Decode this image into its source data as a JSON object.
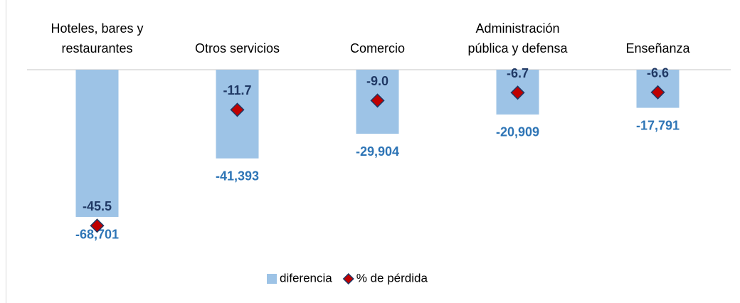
{
  "chart_data": {
    "type": "bar",
    "categories": [
      "Hoteles, bares y restaurantes",
      "Otros servicios",
      "Comercio",
      "Administración pública y defensa",
      "Enseñanza"
    ],
    "series": [
      {
        "name": "diferencia",
        "color": "#9dc3e6",
        "values": [
          -68701,
          -41393,
          -29904,
          -20909,
          -17791
        ],
        "value_labels": [
          "-68,701",
          "-41,393",
          "-29,904",
          "-20,909",
          "-17,791"
        ]
      },
      {
        "name": "% de pérdida",
        "type": "scatter",
        "axis": "y2",
        "color": "#c00000",
        "values": [
          -45.5,
          -11.7,
          -9.0,
          -6.7,
          -6.6
        ],
        "value_labels": [
          "-45.5",
          "-11.7",
          "-9.0",
          "-6.7",
          "-6.6"
        ]
      }
    ],
    "ylim": [
      -80000,
      0
    ],
    "y2lim": [
      -50,
      0
    ],
    "legend": "bottom"
  }
}
